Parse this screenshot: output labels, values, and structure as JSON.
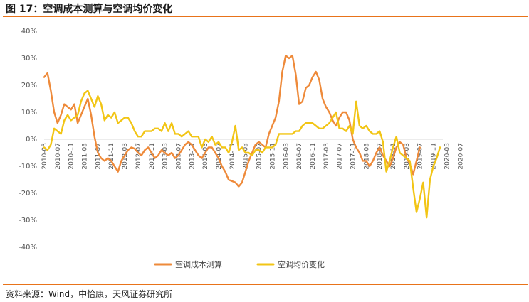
{
  "header": {
    "title": "图 17：空调成本测算与空调均价变化"
  },
  "footer": {
    "source": "资料来源：Wind，中怡康，天风证券研究所"
  },
  "chart_data": {
    "type": "line",
    "ylim": [
      -40,
      40
    ],
    "yticks": [
      "40%",
      "30%",
      "20%",
      "10%",
      "0%",
      "-10%",
      "-20%",
      "-30%",
      "-40%"
    ],
    "ytick_values": [
      40,
      30,
      20,
      10,
      0,
      -10,
      -20,
      -30,
      -40
    ],
    "grid": false,
    "legend_position": "bottom",
    "x_labels": [
      "2010-03",
      "2010-07",
      "2010-11",
      "2011-03",
      "2011-07",
      "2011-11",
      "2012-03",
      "2012-07",
      "2012-11",
      "2013-03",
      "2013-07",
      "2013-11",
      "2014-03",
      "2014-07",
      "2014-11",
      "2015-03",
      "2015-07",
      "2015-11",
      "2016-03",
      "2016-07",
      "2016-11",
      "2017-03",
      "2017-07",
      "2017-11",
      "2018-03",
      "2018-07",
      "2018-11",
      "2019-03",
      "2019-07",
      "2019-11",
      "2020-03",
      "2020-07"
    ],
    "series": [
      {
        "name": "空调成本测算",
        "color": "#ee8a3a",
        "points": [
          [
            0,
            23
          ],
          [
            1,
            24.5
          ],
          [
            2,
            18
          ],
          [
            3,
            10
          ],
          [
            4,
            6
          ],
          [
            5,
            9
          ],
          [
            6,
            13
          ],
          [
            7,
            12
          ],
          [
            8,
            11
          ],
          [
            9,
            13
          ],
          [
            10,
            6
          ],
          [
            11,
            9
          ],
          [
            12,
            12
          ],
          [
            13,
            15
          ],
          [
            14,
            9
          ],
          [
            15,
            1
          ],
          [
            16,
            -5
          ],
          [
            17,
            -7
          ],
          [
            18,
            -8
          ],
          [
            19,
            -7
          ],
          [
            20,
            -8
          ],
          [
            21,
            -10
          ],
          [
            22,
            -12
          ],
          [
            23,
            -8
          ],
          [
            24,
            -6
          ],
          [
            25,
            -4
          ],
          [
            26,
            -3
          ],
          [
            27,
            -3.5
          ],
          [
            28,
            -5
          ],
          [
            29,
            -6
          ],
          [
            30,
            -4
          ],
          [
            31,
            -3
          ],
          [
            32,
            -5
          ],
          [
            33,
            -7
          ],
          [
            34,
            -6
          ],
          [
            35,
            -4
          ],
          [
            36,
            -5
          ],
          [
            37,
            -6
          ],
          [
            38,
            -5
          ],
          [
            39,
            -7
          ],
          [
            40,
            -6
          ],
          [
            41,
            -4
          ],
          [
            42,
            -2
          ],
          [
            43,
            -1
          ],
          [
            44,
            -2
          ],
          [
            45,
            -4
          ],
          [
            46,
            -6
          ],
          [
            47,
            -7
          ],
          [
            48,
            -5
          ],
          [
            49,
            -3
          ],
          [
            50,
            -3
          ],
          [
            51,
            -5
          ],
          [
            52,
            -7
          ],
          [
            53,
            -10
          ],
          [
            54,
            -12
          ],
          [
            55,
            -15
          ],
          [
            56,
            -15.5
          ],
          [
            57,
            -16
          ],
          [
            58,
            -17.5
          ],
          [
            59,
            -16
          ],
          [
            60,
            -12
          ],
          [
            61,
            -8
          ],
          [
            62,
            -5
          ],
          [
            63,
            -2
          ],
          [
            64,
            -1
          ],
          [
            65,
            -2
          ],
          [
            66,
            -3
          ],
          [
            67,
            2
          ],
          [
            68,
            5
          ],
          [
            69,
            8
          ],
          [
            70,
            14
          ],
          [
            71,
            25
          ],
          [
            72,
            31
          ],
          [
            73,
            30
          ],
          [
            74,
            31
          ],
          [
            75,
            24
          ],
          [
            76,
            13
          ],
          [
            77,
            14
          ],
          [
            78,
            19
          ],
          [
            79,
            20
          ],
          [
            80,
            23
          ],
          [
            81,
            25
          ],
          [
            82,
            22
          ],
          [
            83,
            15
          ],
          [
            84,
            12
          ],
          [
            85,
            10
          ],
          [
            86,
            7
          ],
          [
            87,
            5
          ],
          [
            88,
            8
          ],
          [
            89,
            10
          ],
          [
            90,
            10
          ],
          [
            91,
            7
          ],
          [
            92,
            0
          ],
          [
            93,
            -3
          ],
          [
            94,
            -5
          ],
          [
            95,
            -8
          ],
          [
            96,
            -8
          ],
          [
            97,
            -10
          ],
          [
            98,
            -8
          ],
          [
            99,
            -5
          ],
          [
            100,
            -3
          ],
          [
            101,
            -6
          ],
          [
            102,
            -8
          ],
          [
            103,
            -10
          ],
          [
            104,
            -7
          ],
          [
            105,
            -3
          ],
          [
            106,
            -1
          ],
          [
            107,
            -2
          ],
          [
            108,
            -7
          ],
          [
            109,
            -9
          ],
          [
            110,
            -13
          ],
          [
            111,
            -8
          ],
          [
            112,
            -3
          ]
        ]
      },
      {
        "name": "空调均价变化",
        "color": "#f2c515",
        "points": [
          [
            0,
            -3
          ],
          [
            1,
            -4
          ],
          [
            2,
            -2
          ],
          [
            3,
            4
          ],
          [
            4,
            3
          ],
          [
            5,
            2
          ],
          [
            6,
            7
          ],
          [
            7,
            9
          ],
          [
            8,
            7
          ],
          [
            9,
            8
          ],
          [
            10,
            9
          ],
          [
            11,
            14
          ],
          [
            12,
            17
          ],
          [
            13,
            18
          ],
          [
            14,
            15
          ],
          [
            15,
            12
          ],
          [
            16,
            16
          ],
          [
            17,
            13
          ],
          [
            18,
            7
          ],
          [
            19,
            9
          ],
          [
            20,
            8
          ],
          [
            21,
            10
          ],
          [
            22,
            6
          ],
          [
            23,
            7
          ],
          [
            24,
            8
          ],
          [
            25,
            8
          ],
          [
            26,
            6
          ],
          [
            27,
            3
          ],
          [
            28,
            1
          ],
          [
            29,
            1
          ],
          [
            30,
            3
          ],
          [
            31,
            3
          ],
          [
            32,
            3
          ],
          [
            33,
            4
          ],
          [
            34,
            4
          ],
          [
            35,
            3
          ],
          [
            36,
            6
          ],
          [
            37,
            3
          ],
          [
            38,
            6
          ],
          [
            39,
            2
          ],
          [
            40,
            2
          ],
          [
            41,
            1
          ],
          [
            42,
            2
          ],
          [
            43,
            3
          ],
          [
            44,
            1
          ],
          [
            45,
            1
          ],
          [
            46,
            1
          ],
          [
            47,
            -3
          ],
          [
            48,
            0
          ],
          [
            49,
            -1
          ],
          [
            50,
            1
          ],
          [
            51,
            -2
          ],
          [
            52,
            -1
          ],
          [
            53,
            -3
          ],
          [
            54,
            -3
          ],
          [
            55,
            -5
          ],
          [
            56,
            -1
          ],
          [
            57,
            5
          ],
          [
            58,
            -4
          ],
          [
            59,
            -3
          ],
          [
            60,
            -5
          ],
          [
            61,
            -5
          ],
          [
            62,
            -6
          ],
          [
            63,
            -4
          ],
          [
            64,
            -4
          ],
          [
            65,
            -5
          ],
          [
            66,
            -3
          ],
          [
            67,
            -3
          ],
          [
            68,
            -3
          ],
          [
            69,
            -2
          ],
          [
            70,
            2
          ],
          [
            71,
            2
          ],
          [
            72,
            2
          ],
          [
            73,
            2
          ],
          [
            74,
            2
          ],
          [
            75,
            3
          ],
          [
            76,
            3
          ],
          [
            77,
            5
          ],
          [
            78,
            6
          ],
          [
            79,
            6
          ],
          [
            80,
            6
          ],
          [
            81,
            5
          ],
          [
            82,
            4
          ],
          [
            83,
            4
          ],
          [
            84,
            5
          ],
          [
            85,
            6
          ],
          [
            86,
            8
          ],
          [
            87,
            10
          ],
          [
            88,
            4
          ],
          [
            89,
            4
          ],
          [
            90,
            3
          ],
          [
            91,
            5
          ],
          [
            92,
            2
          ],
          [
            93,
            14
          ],
          [
            94,
            5
          ],
          [
            95,
            4
          ],
          [
            96,
            5
          ],
          [
            97,
            3
          ],
          [
            98,
            2
          ],
          [
            99,
            2
          ],
          [
            100,
            3
          ],
          [
            101,
            -1
          ],
          [
            102,
            -12
          ],
          [
            103,
            -8
          ],
          [
            104,
            -3
          ],
          [
            105,
            1
          ],
          [
            106,
            -5
          ],
          [
            107,
            -6
          ],
          [
            108,
            -7
          ],
          [
            109,
            -8
          ],
          [
            110,
            -18
          ],
          [
            111,
            -27
          ],
          [
            112,
            -22
          ],
          [
            113,
            -16
          ],
          [
            114,
            -29
          ],
          [
            115,
            -15
          ],
          [
            116,
            -10
          ],
          [
            117,
            -7
          ],
          [
            118,
            -3
          ]
        ]
      }
    ]
  }
}
